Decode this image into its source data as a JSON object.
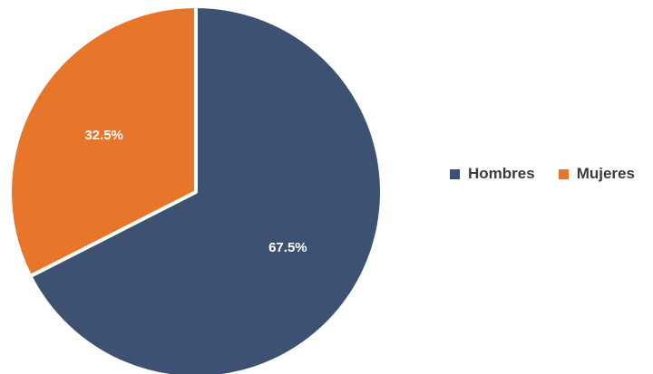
{
  "chart_data": {
    "type": "pie",
    "title": "",
    "categories": [
      "Hombres",
      "Mujeres"
    ],
    "values": [
      67.5,
      32.5
    ],
    "unit": "%",
    "data_labels": [
      "67.5%",
      "32.5%"
    ],
    "colors": [
      "#3d5273",
      "#e8762a"
    ],
    "start_angle_deg": 0,
    "direction": "clockwise",
    "legend_position": "right"
  },
  "legend": {
    "items": [
      {
        "label": "Hombres",
        "color": "#3d5273"
      },
      {
        "label": "Mujeres",
        "color": "#e8762a"
      }
    ]
  }
}
